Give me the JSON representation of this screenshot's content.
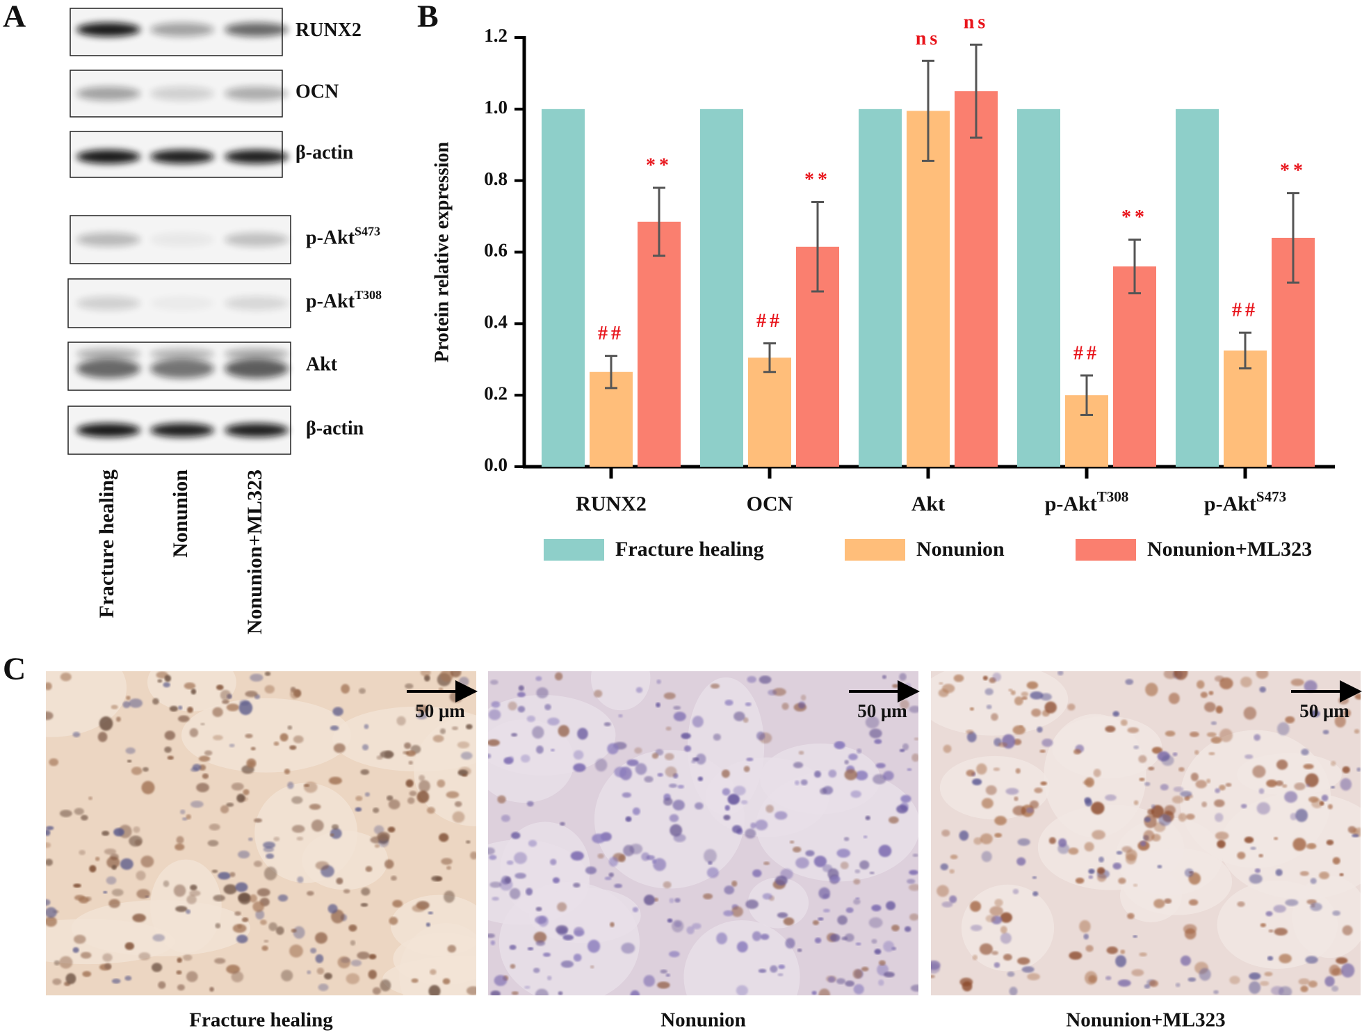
{
  "panel_labels": [
    "A",
    "B",
    "C"
  ],
  "panel_a": {
    "blots": [
      {
        "label": "RUNX2"
      },
      {
        "label": "OCN"
      },
      {
        "label": "β-actin"
      },
      {
        "label": "p-Akt",
        "sup": "S473"
      },
      {
        "label": "p-Akt",
        "sup": "T308"
      },
      {
        "label": "Akt"
      },
      {
        "label": "β-actin"
      }
    ],
    "lanes": [
      "Fracture healing",
      "Nonunion",
      "Nonunion+ML323"
    ]
  },
  "chart_data": {
    "type": "bar",
    "ylabel": "Protein relative expression",
    "categories": [
      "RUNX2",
      "OCN",
      "Akt",
      "p-Akt",
      "p-Akt"
    ],
    "category_superscripts": [
      null,
      null,
      null,
      "T308",
      "S473"
    ],
    "series": [
      {
        "name": "Fracture healing",
        "color": "#8ecfc9",
        "values": [
          1.0,
          1.0,
          1.0,
          1.0,
          1.0
        ]
      },
      {
        "name": "Nonunion",
        "color": "#ffbe7a",
        "values": [
          0.265,
          0.305,
          0.995,
          0.2,
          0.325
        ],
        "errors": [
          0.045,
          0.04,
          0.14,
          0.055,
          0.05
        ],
        "annotations": [
          "##",
          "##",
          "ns",
          "##",
          "##"
        ]
      },
      {
        "name": "Nonunion+ML323",
        "color": "#fa7f6f",
        "values": [
          0.685,
          0.615,
          1.05,
          0.56,
          0.64
        ],
        "errors": [
          0.095,
          0.125,
          0.13,
          0.075,
          0.125
        ],
        "annotations": [
          "**",
          "**",
          "ns",
          "**",
          "**"
        ]
      }
    ],
    "ylim": [
      0,
      1.2
    ],
    "yticks": [
      {
        "value": 0,
        "label": "0.0"
      },
      {
        "value": 0.2,
        "label": "0.2"
      },
      {
        "value": 0.4,
        "label": "0.4"
      },
      {
        "value": 0.6,
        "label": "0.6"
      },
      {
        "value": 0.8,
        "label": "0.8"
      },
      {
        "value": 1,
        "label": "1.0"
      },
      {
        "value": 1.2,
        "label": "1.2"
      }
    ],
    "annotation_color": "#e8141b",
    "error_color": "#555555"
  },
  "panel_c": {
    "images": [
      {
        "caption": "Fracture healing",
        "scale_bar": "50 μm"
      },
      {
        "caption": "Nonunion",
        "scale_bar": "50 μm"
      },
      {
        "caption": "Nonunion+ML323",
        "scale_bar": "50 μm"
      }
    ]
  }
}
